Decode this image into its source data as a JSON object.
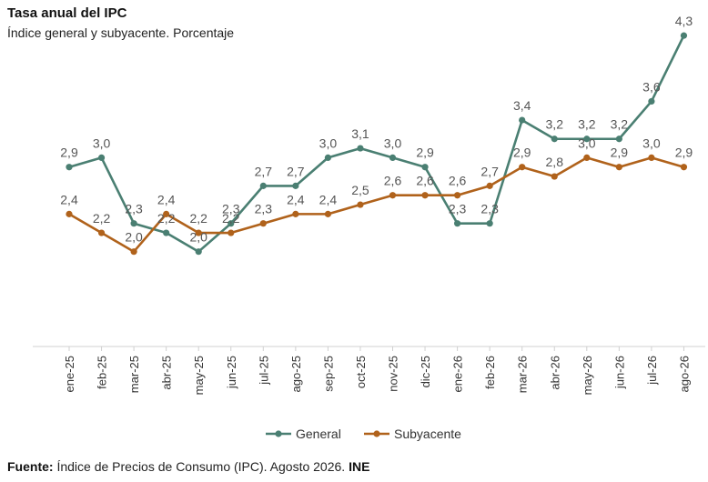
{
  "header": {
    "title": "Tasa anual del IPC",
    "subtitle": "Índice general y subyacente. Porcentaje"
  },
  "colors": {
    "general": "#4a7f72",
    "subyacente": "#b0621b",
    "axis": "#d0d0d0",
    "label": "#555555"
  },
  "chart_data": {
    "type": "line",
    "title": "Tasa anual del IPC",
    "subtitle": "Índice general y subyacente. Porcentaje",
    "categories": [
      "ene-25",
      "feb-25",
      "mar-25",
      "abr-25",
      "may-25",
      "jun-25",
      "jul-25",
      "ago-25",
      "sep-25",
      "oct-25",
      "nov-25",
      "dic-25",
      "ene-26",
      "feb-26",
      "mar-26",
      "abr-26",
      "may-26",
      "jun-26",
      "jul-26",
      "ago-26"
    ],
    "series": [
      {
        "name": "General",
        "values": [
          2.9,
          3.0,
          2.3,
          2.2,
          2.0,
          2.3,
          2.7,
          2.7,
          3.0,
          3.1,
          3.0,
          2.9,
          2.3,
          2.3,
          3.4,
          3.2,
          3.2,
          3.2,
          3.6,
          4.3
        ],
        "labels": [
          "2,9",
          "3,0",
          "2,3",
          "2,2",
          "2,0",
          "2,3",
          "2,7",
          "2,7",
          "3,0",
          "3,1",
          "3,0",
          "2,9",
          "2,3",
          "2,3",
          "3,4",
          "3,2",
          "3,2",
          "3,2",
          "3,6",
          "4,3"
        ]
      },
      {
        "name": "Subyacente",
        "values": [
          2.4,
          2.2,
          2.0,
          2.4,
          2.2,
          2.2,
          2.3,
          2.4,
          2.4,
          2.5,
          2.6,
          2.6,
          2.6,
          2.7,
          2.9,
          2.8,
          3.0,
          2.9,
          3.0,
          2.9
        ],
        "labels": [
          "2,4",
          "2,2",
          "2,0",
          "2,4",
          "2,2",
          "2,2",
          "2,3",
          "2,4",
          "2,4",
          "2,5",
          "2,6",
          "2,6",
          "2,6",
          "2,7",
          "2,9",
          "2,8",
          "3,0",
          "2,9",
          "3,0",
          "2,9"
        ]
      }
    ],
    "ylim": [
      1.0,
      4.4
    ],
    "grid": false,
    "legend": "bottom"
  },
  "footer": {
    "source_label": "Fuente:",
    "source_text": " Índice de Precios de Consumo (IPC). Agosto 2026. ",
    "source_org": "INE"
  }
}
